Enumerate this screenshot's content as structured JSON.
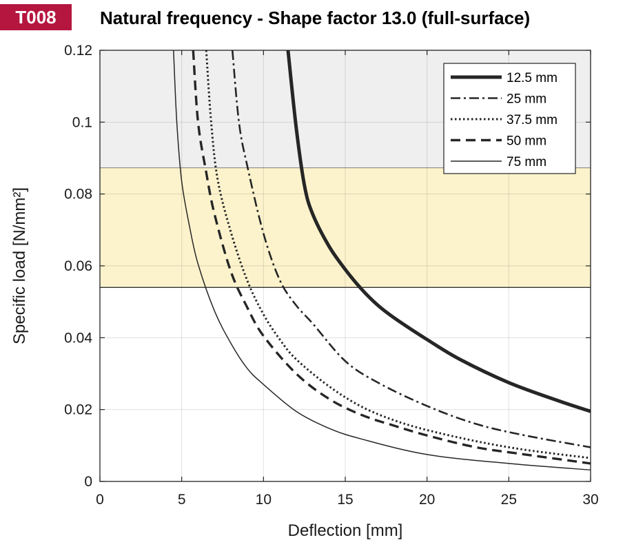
{
  "header": {
    "badge": "T008",
    "title": "Natural frequency - Shape factor 13.0 (full-surface)"
  },
  "chart_data": {
    "type": "line",
    "title": "Natural frequency - Shape factor 13.0 (full-surface)",
    "xlabel": "Deflection  [mm]",
    "ylabel": "Specific load [N/mm²]",
    "xlim": [
      0,
      30
    ],
    "ylim": [
      0,
      0.12
    ],
    "xticks": [
      "0",
      "5",
      "10",
      "15",
      "20",
      "25",
      "30"
    ],
    "yticks": [
      "0",
      "0.02",
      "0.04",
      "0.06",
      "0.08",
      "0.1",
      "0.12"
    ],
    "grid": true,
    "legend_position": "top-right",
    "bands": [
      {
        "ymin": 0.0872,
        "ymax": 0.12,
        "color": "#efefef"
      },
      {
        "ymin": 0.054,
        "ymax": 0.0872,
        "color": "#fcf3cc"
      }
    ],
    "series": [
      {
        "name": "12.5 mm",
        "style": "solid-thick",
        "color": "#262626",
        "x": [
          11.5,
          12,
          12.5,
          13,
          14,
          15,
          16,
          17,
          18,
          20,
          22,
          25,
          28,
          30
        ],
        "y": [
          0.12,
          0.0985,
          0.0825,
          0.0745,
          0.0655,
          0.059,
          0.0535,
          0.049,
          0.0455,
          0.0395,
          0.034,
          0.0275,
          0.0225,
          0.0195
        ]
      },
      {
        "name": "25 mm",
        "style": "dash-dot",
        "color": "#262626",
        "x": [
          8.1,
          8.5,
          9,
          10,
          11,
          12,
          13,
          15,
          17,
          20,
          23,
          26,
          30
        ],
        "y": [
          0.12,
          0.1,
          0.088,
          0.069,
          0.056,
          0.049,
          0.044,
          0.0335,
          0.0275,
          0.021,
          0.016,
          0.0128,
          0.0095
        ]
      },
      {
        "name": "37.5 mm",
        "style": "dotted",
        "color": "#262626",
        "x": [
          6.5,
          6.8,
          7.2,
          8,
          9,
          10,
          11,
          12,
          14,
          16,
          18,
          20,
          23,
          26,
          30
        ],
        "y": [
          0.12,
          0.1,
          0.084,
          0.0695,
          0.056,
          0.0465,
          0.0395,
          0.034,
          0.0265,
          0.0208,
          0.017,
          0.0143,
          0.0112,
          0.0088,
          0.0065
        ]
      },
      {
        "name": "50 mm",
        "style": "dashed",
        "color": "#262626",
        "x": [
          5.7,
          6,
          6.5,
          7,
          8,
          9,
          10,
          12,
          14,
          16,
          18,
          20,
          23,
          26,
          30
        ],
        "y": [
          0.12,
          0.1,
          0.086,
          0.0745,
          0.0585,
          0.0485,
          0.0405,
          0.03,
          0.023,
          0.0185,
          0.0155,
          0.0128,
          0.0095,
          0.0075,
          0.005
        ]
      },
      {
        "name": "75 mm",
        "style": "solid-thin",
        "color": "#262626",
        "x": [
          4.5,
          4.7,
          5,
          5.5,
          6,
          7,
          8,
          9,
          10,
          12,
          14,
          16,
          20,
          25,
          30
        ],
        "y": [
          0.12,
          0.1,
          0.0835,
          0.0705,
          0.0605,
          0.0475,
          0.0385,
          0.0315,
          0.027,
          0.0195,
          0.0148,
          0.0118,
          0.0075,
          0.005,
          0.0032
        ]
      }
    ]
  }
}
